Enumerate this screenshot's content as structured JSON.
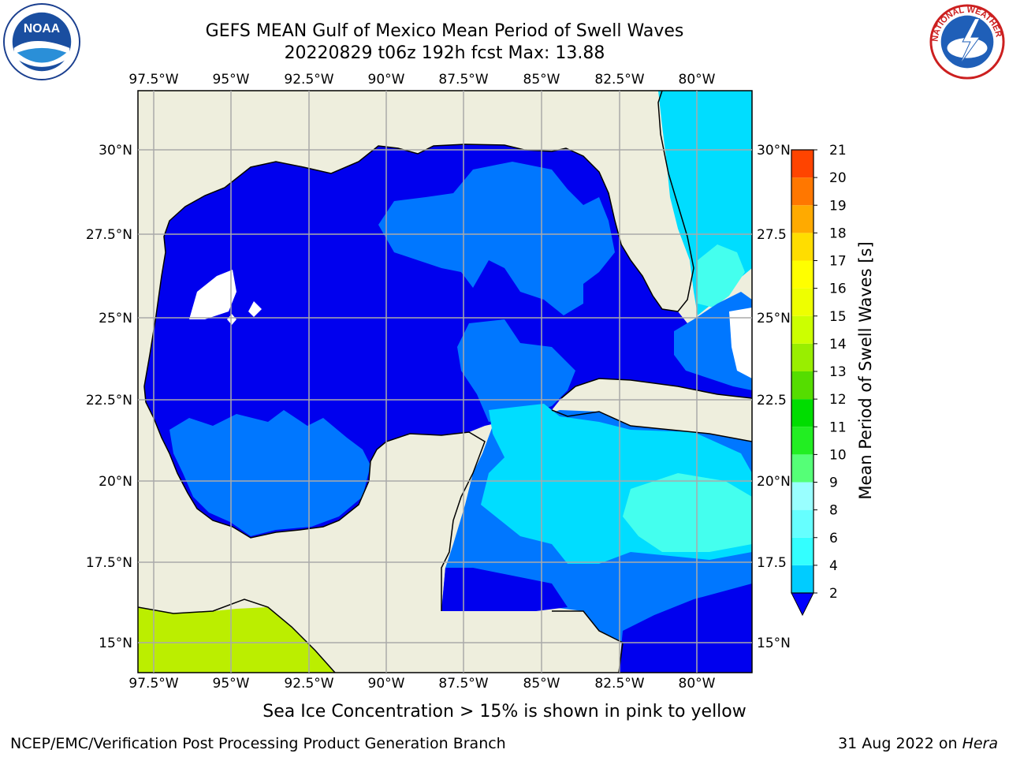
{
  "header": {
    "title_line1": "GEFS MEAN Gulf of Mexico Mean Period of Swell Waves",
    "title_line2": "20220829 t06z 192h fcst   Max: 13.88"
  },
  "map": {
    "region": "Gulf of Mexico",
    "lon_labels": [
      "97.5°W",
      "95°W",
      "92.5°W",
      "90°W",
      "87.5°W",
      "85°W",
      "82.5°W",
      "80°W"
    ],
    "lat_labels": [
      "30°N",
      "27.5°N",
      "25°N",
      "22.5°N",
      "20°N",
      "17.5°N",
      "15°N"
    ],
    "lat_labels_right": [
      "30°N",
      "27.5",
      "25°N",
      "22.5",
      "20°N",
      "17.5",
      "15°N"
    ]
  },
  "colorbar": {
    "label": "Mean Period of Swell Waves [s]",
    "ticks": [
      "2",
      "4",
      "6",
      "8",
      "9",
      "10",
      "11",
      "12",
      "13",
      "14",
      "15",
      "16",
      "17",
      "18",
      "19",
      "20",
      "21"
    ],
    "colors": [
      "#0077ff",
      "#00ccff",
      "#33ffff",
      "#66ffff",
      "#99ffff",
      "#55ff77",
      "#22ee22",
      "#00dd00",
      "#55dd00",
      "#99ee00",
      "#ccff00",
      "#eeff00",
      "#ffff00",
      "#ffdd00",
      "#ffaa00",
      "#ff7700",
      "#ff4400",
      "#ff0000"
    ],
    "extend_color": "#0000ff"
  },
  "colors": {
    "land": "#eeeedd",
    "level_2": "#0000ee",
    "level_2_4": "#0077ff",
    "level_4_6": "#00ddff",
    "level_6_8": "#44ffee",
    "level_12": "#bbee00",
    "grid": "#aaaaaa"
  },
  "logos": {
    "noaa_text": "NOAA",
    "nws_ring_text": "NATIONAL WEATHER SERVICE"
  },
  "annotation": "Sea Ice Concentration > 15% is shown in pink to yellow",
  "footer": {
    "left": "NCEP/EMC/Verification Post Processing Product Generation Branch",
    "right_prefix": "31 Aug 2022 on ",
    "right_host": "Hera"
  }
}
